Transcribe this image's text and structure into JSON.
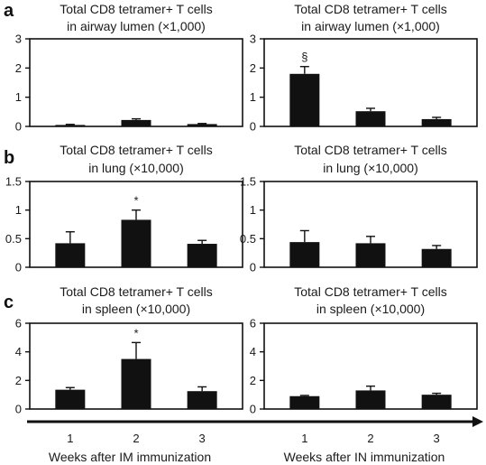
{
  "panel_letters": [
    "a",
    "b",
    "c"
  ],
  "x_axis": {
    "ticks": [
      "1",
      "2",
      "3"
    ],
    "labels": [
      "Weeks after IM immunization",
      "Weeks after IN immunization"
    ]
  },
  "colors": {
    "bar": "#111111",
    "axis": "#111111"
  },
  "chart_data": [
    {
      "type": "bar",
      "row": 0,
      "col": 0,
      "title": [
        "Total CD8 tetramer+ T cells",
        "in airway lumen (×1,000)"
      ],
      "categories": [
        "1",
        "2",
        "3"
      ],
      "values": [
        0.05,
        0.22,
        0.08
      ],
      "errors": [
        0.02,
        0.04,
        0.02
      ],
      "annotations": [
        "",
        "",
        ""
      ],
      "ylim": [
        0,
        3
      ],
      "yticks": [
        "0",
        "1",
        "2",
        "3"
      ],
      "ytick_values": [
        0,
        1,
        2,
        3
      ]
    },
    {
      "type": "bar",
      "row": 0,
      "col": 1,
      "title": [
        "Total CD8 tetramer+ T cells",
        "in airway lumen (×1,000)"
      ],
      "categories": [
        "1",
        "2",
        "3"
      ],
      "values": [
        1.8,
        0.52,
        0.25
      ],
      "errors": [
        0.25,
        0.1,
        0.06
      ],
      "annotations": [
        "§",
        "",
        ""
      ],
      "ylim": [
        0,
        3
      ],
      "yticks": [
        "0",
        "1",
        "2",
        "3"
      ],
      "ytick_values": [
        0,
        1,
        2,
        3
      ]
    },
    {
      "type": "bar",
      "row": 1,
      "col": 0,
      "title": [
        "Total CD8 tetramer+ T cells",
        "in lung (×10,000)"
      ],
      "categories": [
        "1",
        "2",
        "3"
      ],
      "values": [
        0.42,
        0.83,
        0.41
      ],
      "errors": [
        0.2,
        0.17,
        0.06
      ],
      "annotations": [
        "",
        "*",
        ""
      ],
      "ylim": [
        0,
        1.5
      ],
      "yticks": [
        "0",
        "0.5",
        "1",
        "1.5"
      ],
      "ytick_values": [
        0,
        0.5,
        1,
        1.5
      ]
    },
    {
      "type": "bar",
      "row": 1,
      "col": 1,
      "title": [
        "Total CD8 tetramer+ T cells",
        "in lung (×10,000)"
      ],
      "categories": [
        "1",
        "2",
        "3"
      ],
      "values": [
        0.44,
        0.42,
        0.32
      ],
      "errors": [
        0.2,
        0.12,
        0.06
      ],
      "annotations": [
        "",
        "",
        ""
      ],
      "ylim": [
        0,
        1.5
      ],
      "yticks": [
        "0",
        "0.5",
        "1",
        "1.5"
      ],
      "ytick_values": [
        0,
        0.5,
        1,
        1.5
      ]
    },
    {
      "type": "bar",
      "row": 2,
      "col": 0,
      "title": [
        "Total CD8 tetramer+ T cells",
        "in spleen (×10,000)"
      ],
      "categories": [
        "1",
        "2",
        "3"
      ],
      "values": [
        1.35,
        3.5,
        1.25
      ],
      "errors": [
        0.15,
        1.15,
        0.3
      ],
      "annotations": [
        "",
        "*",
        ""
      ],
      "ylim": [
        0,
        6
      ],
      "yticks": [
        "0",
        "2",
        "4",
        "6"
      ],
      "ytick_values": [
        0,
        2,
        4,
        6
      ]
    },
    {
      "type": "bar",
      "row": 2,
      "col": 1,
      "title": [
        "Total CD8 tetramer+ T cells",
        "in spleen (×10,000)"
      ],
      "categories": [
        "1",
        "2",
        "3"
      ],
      "values": [
        0.9,
        1.3,
        1.0
      ],
      "errors": [
        0.05,
        0.3,
        0.1
      ],
      "annotations": [
        "",
        "",
        ""
      ],
      "ylim": [
        0,
        6
      ],
      "yticks": [
        "0",
        "2",
        "4",
        "6"
      ],
      "ytick_values": [
        0,
        2,
        4,
        6
      ]
    }
  ]
}
